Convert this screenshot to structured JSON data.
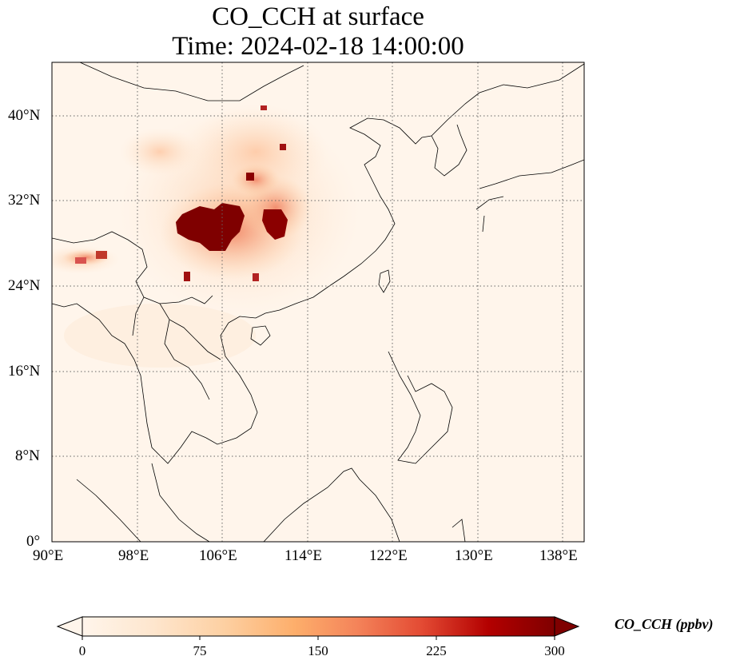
{
  "title": {
    "line1": "CO_CCH at surface",
    "line2": "Time: 2024-02-18 14:00:00"
  },
  "map": {
    "lon_range": [
      90,
      140
    ],
    "lat_range": [
      0,
      45
    ],
    "lon_ticks": [
      "90°E",
      "98°E",
      "106°E",
      "114°E",
      "122°E",
      "130°E",
      "138°E"
    ],
    "lat_ticks": [
      "0°",
      "8°N",
      "16°N",
      "24°N",
      "32°N",
      "40°N"
    ],
    "gridlines": "dotted",
    "background_color": "#fff5eb"
  },
  "colorbar": {
    "label": "CO_CCH (ppbv)",
    "ticks": [
      "0",
      "75",
      "150",
      "225",
      "300"
    ],
    "range": [
      0,
      300
    ],
    "colormap": "OrRd-like",
    "extend": "both",
    "colors": [
      "#fff5eb",
      "#fee6ce",
      "#fdd0a2",
      "#fdae6b",
      "#fd8d3c",
      "#f16913",
      "#d94801",
      "#a50000",
      "#7f0000"
    ]
  }
}
